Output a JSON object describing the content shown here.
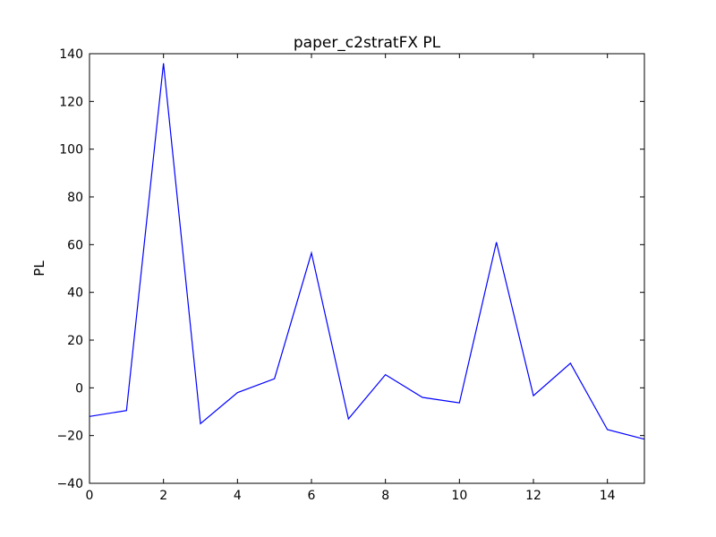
{
  "chart_data": {
    "type": "line",
    "title": "paper_c2stratFX PL",
    "xlabel": "",
    "ylabel": "PL",
    "xlim": [
      0,
      15
    ],
    "ylim": [
      -40,
      140
    ],
    "xticks": [
      0,
      2,
      4,
      6,
      8,
      10,
      12,
      14
    ],
    "yticks": [
      -40,
      -20,
      0,
      20,
      40,
      60,
      80,
      100,
      120,
      140
    ],
    "grid": false,
    "series": [
      {
        "color": "#0000ff",
        "x": [
          0,
          1,
          2,
          3,
          4,
          5,
          6,
          7,
          8,
          9,
          10,
          11,
          12,
          13,
          14,
          15
        ],
        "y": [
          -12,
          -9.5,
          136,
          -15,
          -2,
          3.8,
          56.5,
          -13,
          5.5,
          -4,
          -6.3,
          61,
          -3.3,
          10.3,
          -17.5,
          -21.5
        ]
      }
    ]
  }
}
